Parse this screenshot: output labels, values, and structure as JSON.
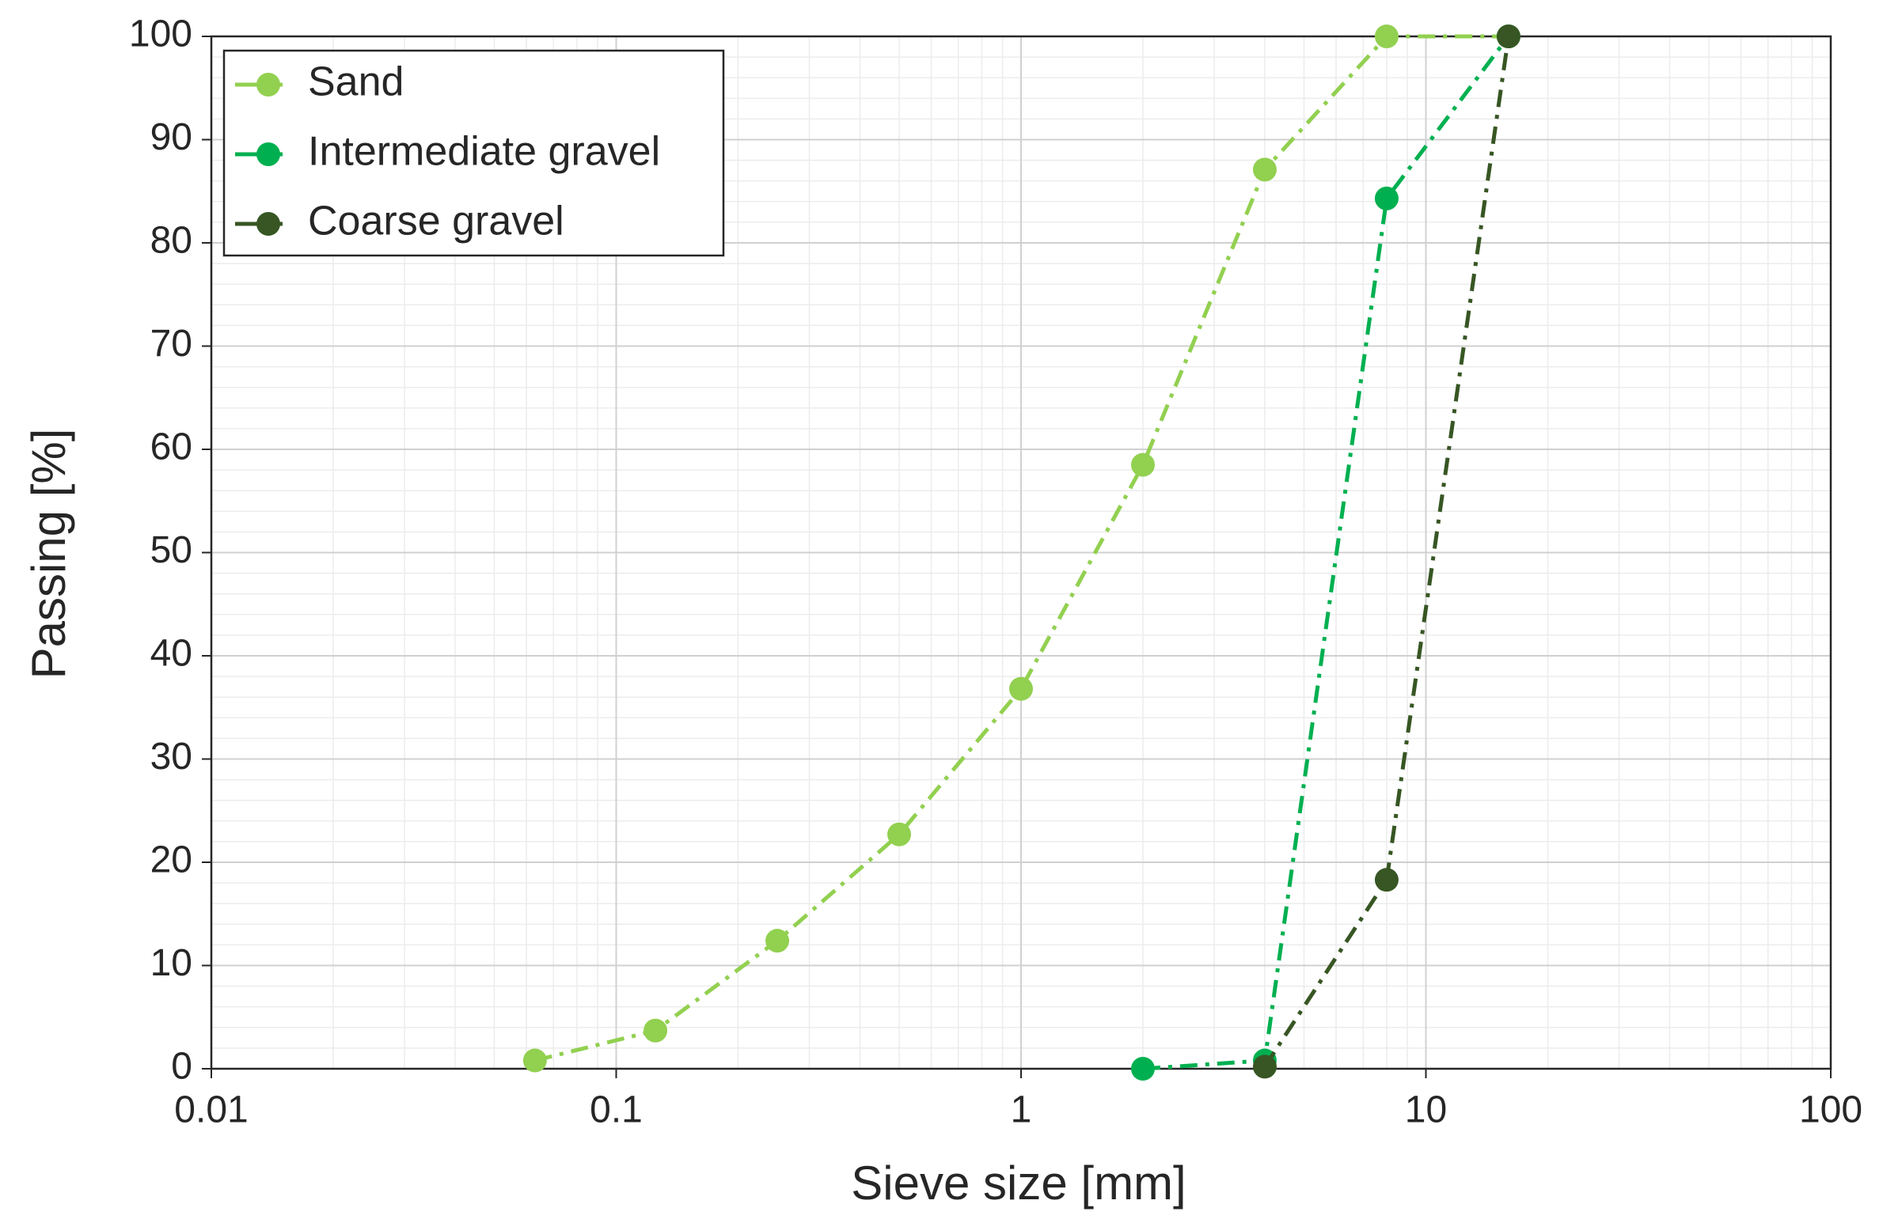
{
  "chart_data": {
    "type": "line",
    "x_label": "Sieve size [mm]",
    "y_label": "Passing [%]",
    "xlim": [
      0.01,
      100
    ],
    "xticks": [
      0.01,
      0.1,
      1,
      10,
      100
    ],
    "x_scale": "log",
    "ylim": [
      0,
      100
    ],
    "yticks": [
      0,
      10,
      20,
      30,
      40,
      50,
      60,
      70,
      80,
      90,
      100
    ],
    "grid": true,
    "minor_grid": true,
    "line_style": "dash-dot",
    "legend_position": "upper left",
    "series": [
      {
        "name": "Sand",
        "color": "#92d050",
        "x": [
          0.063,
          0.125,
          0.25,
          0.5,
          1,
          2,
          4,
          8,
          16
        ],
        "values": [
          0.8,
          3.7,
          12.4,
          22.7,
          36.8,
          58.5,
          87.1,
          100,
          100
        ]
      },
      {
        "name": "Intermediate gravel",
        "color": "#00b050",
        "x": [
          2,
          4,
          8,
          16
        ],
        "values": [
          0,
          0.8,
          84.3,
          100
        ]
      },
      {
        "name": "Coarse gravel",
        "color": "#375623",
        "x": [
          4,
          8,
          16
        ],
        "values": [
          0.2,
          18.3,
          100
        ]
      }
    ]
  }
}
